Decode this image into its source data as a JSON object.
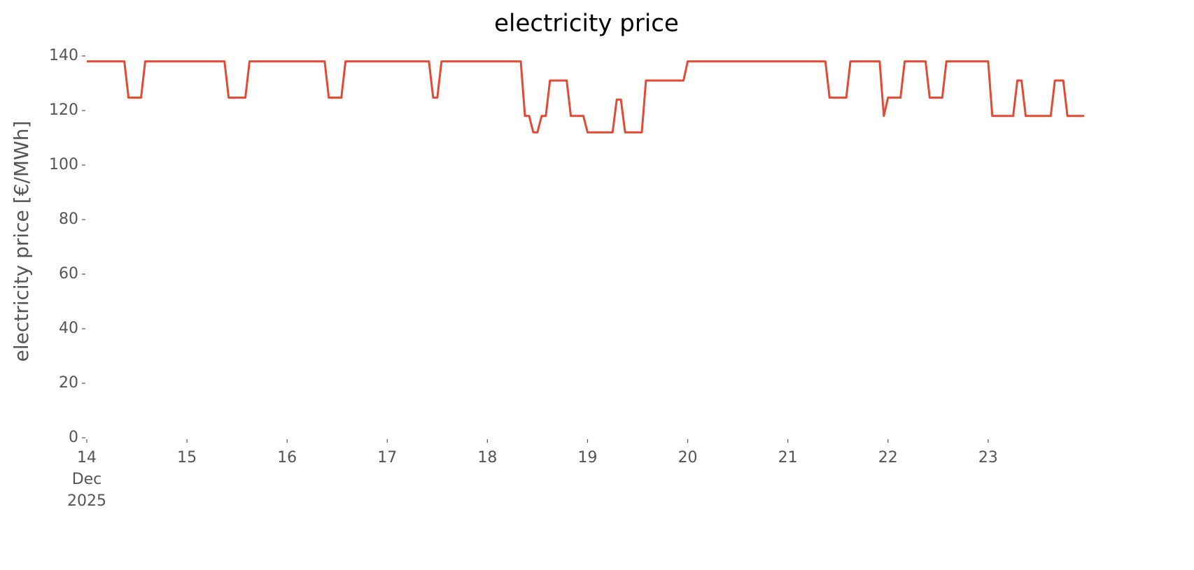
{
  "chart_data": {
    "type": "line",
    "title": "electricity price",
    "y_label": "electricity price [€/MWh]",
    "x": [
      "2025-12-14T00:00",
      "2025-12-14T09:00",
      "2025-12-14T10:00",
      "2025-12-14T13:00",
      "2025-12-14T14:00",
      "2025-12-15T09:00",
      "2025-12-15T10:00",
      "2025-12-15T14:00",
      "2025-12-15T15:00",
      "2025-12-16T09:00",
      "2025-12-16T10:00",
      "2025-12-16T13:00",
      "2025-12-16T14:00",
      "2025-12-17T10:00",
      "2025-12-17T11:00",
      "2025-12-17T12:00",
      "2025-12-17T13:00",
      "2025-12-18T08:00",
      "2025-12-18T09:00",
      "2025-12-18T10:00",
      "2025-12-18T11:00",
      "2025-12-18T12:00",
      "2025-12-18T13:00",
      "2025-12-18T14:00",
      "2025-12-18T15:00",
      "2025-12-18T19:00",
      "2025-12-18T20:00",
      "2025-12-18T23:00",
      "2025-12-19T00:00",
      "2025-12-19T06:00",
      "2025-12-19T07:00",
      "2025-12-19T08:00",
      "2025-12-19T09:00",
      "2025-12-19T13:00",
      "2025-12-19T14:00",
      "2025-12-19T23:00",
      "2025-12-20T00:00",
      "2025-12-21T09:00",
      "2025-12-21T10:00",
      "2025-12-21T14:00",
      "2025-12-21T15:00",
      "2025-12-21T22:00",
      "2025-12-21T23:00",
      "2025-12-22T00:00",
      "2025-12-22T03:00",
      "2025-12-22T04:00",
      "2025-12-22T09:00",
      "2025-12-22T10:00",
      "2025-12-22T13:00",
      "2025-12-22T14:00",
      "2025-12-23T00:00",
      "2025-12-23T01:00",
      "2025-12-23T06:00",
      "2025-12-23T07:00",
      "2025-12-23T08:00",
      "2025-12-23T09:00",
      "2025-12-23T15:00",
      "2025-12-23T16:00",
      "2025-12-23T18:00",
      "2025-12-23T19:00",
      "2025-12-23T23:00"
    ],
    "series": [
      {
        "name": "electricity price",
        "color": "#e24a33",
        "values": [
          138,
          138,
          124.7,
          124.7,
          138,
          138,
          124.7,
          124.7,
          138,
          138,
          124.7,
          124.7,
          138,
          138,
          124.7,
          124.7,
          138,
          138,
          118,
          118,
          112,
          112,
          118,
          118,
          131,
          131,
          118,
          118,
          112,
          112,
          124,
          124,
          112,
          112,
          131,
          131,
          138,
          138,
          124.7,
          124.7,
          138,
          138,
          118,
          124.7,
          124.7,
          138,
          138,
          124.7,
          124.7,
          138,
          138,
          118,
          118,
          131,
          131,
          118,
          118,
          131,
          131,
          118,
          118
        ]
      }
    ],
    "xlim": [
      "2025-12-14T00:00",
      "2025-12-23T23:00"
    ],
    "xticks": [
      {
        "value": "2025-12-14",
        "label": "14\nDec\n2025"
      },
      {
        "value": "2025-12-15",
        "label": "15"
      },
      {
        "value": "2025-12-16",
        "label": "16"
      },
      {
        "value": "2025-12-17",
        "label": "17"
      },
      {
        "value": "2025-12-18",
        "label": "18"
      },
      {
        "value": "2025-12-19",
        "label": "19"
      },
      {
        "value": "2025-12-20",
        "label": "20"
      },
      {
        "value": "2025-12-21",
        "label": "21"
      },
      {
        "value": "2025-12-22",
        "label": "22"
      },
      {
        "value": "2025-12-23",
        "label": "23"
      }
    ],
    "ylim": [
      0,
      140
    ],
    "yticks": [
      0,
      20,
      40,
      60,
      80,
      100,
      120,
      140
    ],
    "grid": false
  }
}
